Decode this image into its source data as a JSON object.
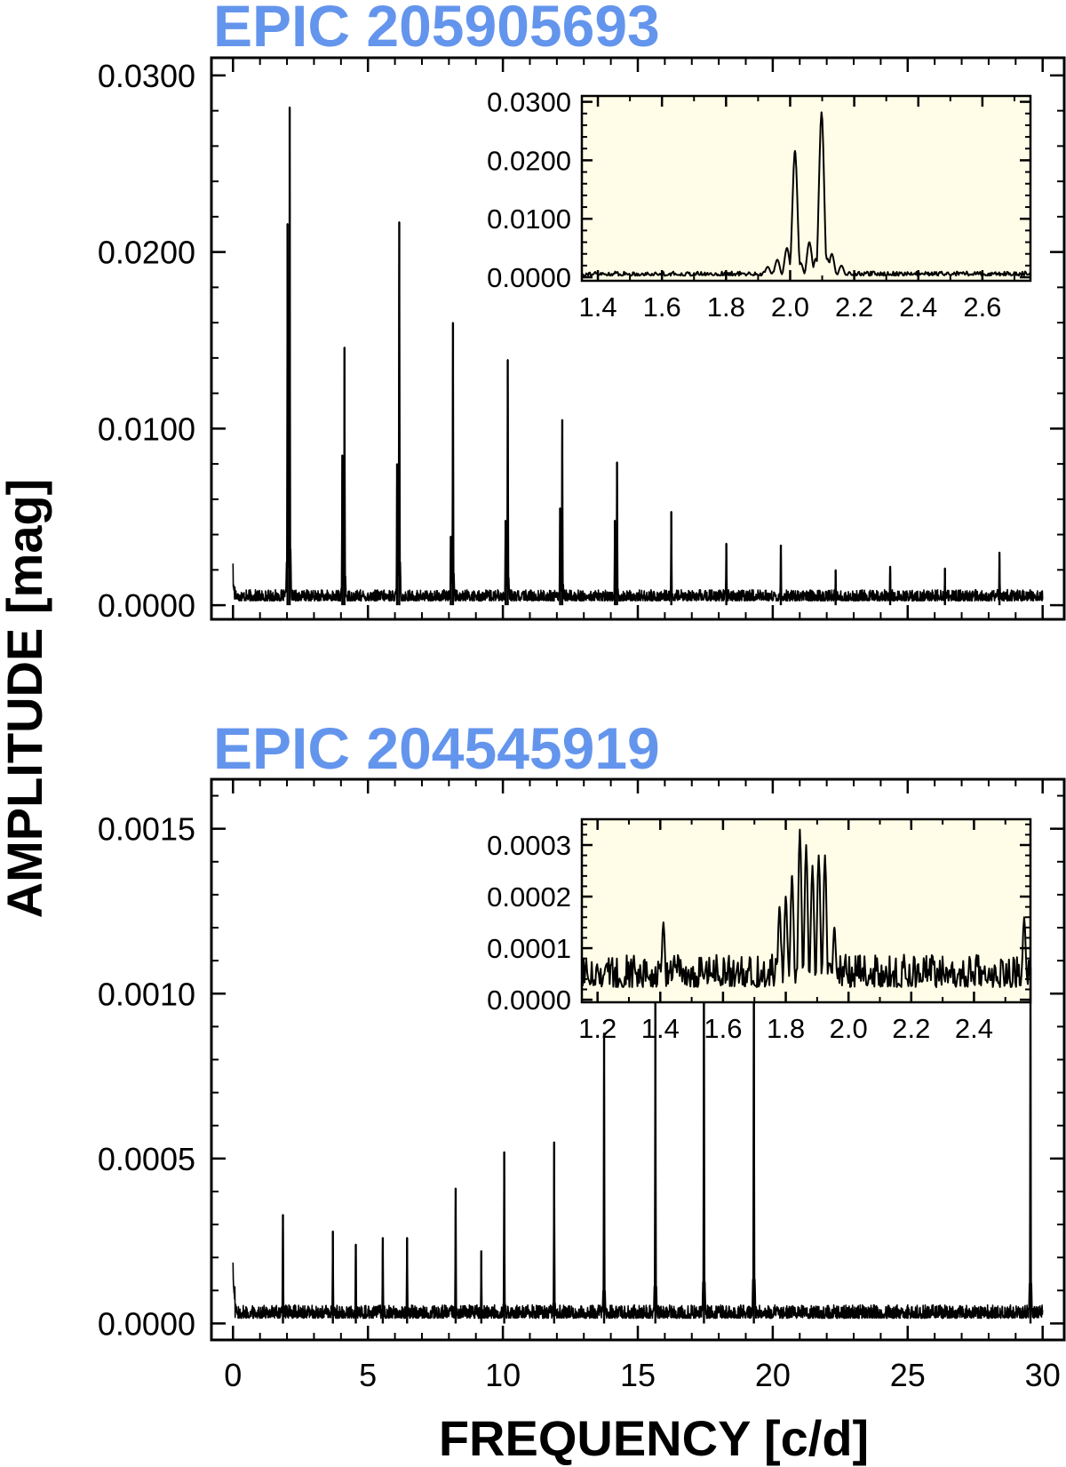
{
  "figure": {
    "ylabel": "AMPLITUDE [mag]",
    "xlabel": "FREQUENCY [c/d]",
    "title_color": "#6495ED",
    "inset_bg": "#FFFDE7",
    "line_color": "#000000"
  },
  "chart_data": [
    {
      "type": "line",
      "title": "EPIC 205905693",
      "xlim": [
        -0.8,
        30.8
      ],
      "ylim": [
        -0.0008,
        0.031
      ],
      "x_ticks": [
        0,
        5,
        10,
        15,
        20,
        25,
        30
      ],
      "y_ticks": [
        0,
        0.01,
        0.02,
        0.03
      ],
      "y_tick_labels": [
        "0.0000",
        "0.0100",
        "0.0200",
        "0.0300"
      ],
      "grid": false,
      "noise_level": 0.0007,
      "noise_start": 0.0025,
      "peaks": [
        {
          "x": 2.1,
          "y": 0.0282
        },
        {
          "x": 2.02,
          "y": 0.0216
        },
        {
          "x": 4.13,
          "y": 0.0146
        },
        {
          "x": 4.05,
          "y": 0.0085
        },
        {
          "x": 6.16,
          "y": 0.0217
        },
        {
          "x": 6.08,
          "y": 0.008
        },
        {
          "x": 8.15,
          "y": 0.016
        },
        {
          "x": 8.07,
          "y": 0.0039
        },
        {
          "x": 10.18,
          "y": 0.0139
        },
        {
          "x": 10.1,
          "y": 0.0048
        },
        {
          "x": 12.2,
          "y": 0.0105
        },
        {
          "x": 12.12,
          "y": 0.0055
        },
        {
          "x": 14.23,
          "y": 0.0081
        },
        {
          "x": 14.15,
          "y": 0.0048
        },
        {
          "x": 16.24,
          "y": 0.0053
        },
        {
          "x": 18.28,
          "y": 0.0035
        },
        {
          "x": 20.3,
          "y": 0.0034
        },
        {
          "x": 22.33,
          "y": 0.002
        },
        {
          "x": 24.35,
          "y": 0.0022
        },
        {
          "x": 26.38,
          "y": 0.0021
        },
        {
          "x": 28.4,
          "y": 0.003
        }
      ],
      "inset": {
        "xlim": [
          1.35,
          2.75
        ],
        "ylim": [
          -0.0006,
          0.031
        ],
        "x_ticks": [
          1.4,
          1.6,
          1.8,
          2.0,
          2.2,
          2.4,
          2.6
        ],
        "y_ticks": [
          0,
          0.01,
          0.02,
          0.03
        ],
        "y_tick_labels": [
          "0.0000",
          "0.0100",
          "0.0200",
          "0.0300"
        ],
        "noise_level": 0.0008,
        "peaks": [
          {
            "x": 2.015,
            "y": 0.0216
          },
          {
            "x": 2.098,
            "y": 0.0282
          },
          {
            "x": 2.06,
            "y": 0.006
          },
          {
            "x": 1.99,
            "y": 0.005
          },
          {
            "x": 2.13,
            "y": 0.004
          },
          {
            "x": 1.96,
            "y": 0.003
          },
          {
            "x": 1.93,
            "y": 0.0018
          },
          {
            "x": 2.16,
            "y": 0.002
          }
        ]
      }
    },
    {
      "type": "line",
      "title": "EPIC 204545919",
      "xlim": [
        -0.8,
        30.8
      ],
      "ylim": [
        -5e-05,
        0.00165
      ],
      "x_ticks": [
        0,
        5,
        10,
        15,
        20,
        25,
        30
      ],
      "y_ticks": [
        0,
        0.0005,
        0.001,
        0.0015
      ],
      "y_tick_labels": [
        "0.0000",
        "0.0005",
        "0.0010",
        "0.0015"
      ],
      "grid": false,
      "noise_level": 4.5e-05,
      "noise_start": 0.00026,
      "peaks": [
        {
          "x": 1.85,
          "y": 0.00033
        },
        {
          "x": 3.7,
          "y": 0.00028
        },
        {
          "x": 4.55,
          "y": 0.00024
        },
        {
          "x": 5.55,
          "y": 0.00026
        },
        {
          "x": 6.45,
          "y": 0.00026
        },
        {
          "x": 8.25,
          "y": 0.00041
        },
        {
          "x": 9.2,
          "y": 0.00022
        },
        {
          "x": 10.05,
          "y": 0.00052
        },
        {
          "x": 11.9,
          "y": 0.00055
        },
        {
          "x": 13.75,
          "y": 0.00088
        },
        {
          "x": 15.65,
          "y": 0.001
        },
        {
          "x": 17.45,
          "y": 0.00112
        },
        {
          "x": 19.3,
          "y": 0.00119
        },
        {
          "x": 29.55,
          "y": 0.00108
        }
      ],
      "inset": {
        "xlim": [
          1.15,
          2.58
        ],
        "ylim": [
          -5e-06,
          0.00035
        ],
        "x_ticks": [
          1.2,
          1.4,
          1.6,
          1.8,
          2.0,
          2.2,
          2.4
        ],
        "y_ticks": [
          0,
          0.0001,
          0.0002,
          0.0003
        ],
        "y_tick_labels": [
          "0.0000",
          "0.0001",
          "0.0002",
          "0.0003"
        ],
        "noise_level": 7e-05,
        "peaks": [
          {
            "x": 1.845,
            "y": 0.00033
          },
          {
            "x": 1.82,
            "y": 0.00024
          },
          {
            "x": 1.865,
            "y": 0.0003
          },
          {
            "x": 1.885,
            "y": 0.00026
          },
          {
            "x": 1.905,
            "y": 0.00028
          },
          {
            "x": 1.925,
            "y": 0.00028
          },
          {
            "x": 1.8,
            "y": 0.0002
          },
          {
            "x": 1.78,
            "y": 0.00018
          },
          {
            "x": 1.955,
            "y": 0.00014
          },
          {
            "x": 1.41,
            "y": 0.00015
          },
          {
            "x": 2.56,
            "y": 0.00016
          }
        ]
      }
    }
  ]
}
